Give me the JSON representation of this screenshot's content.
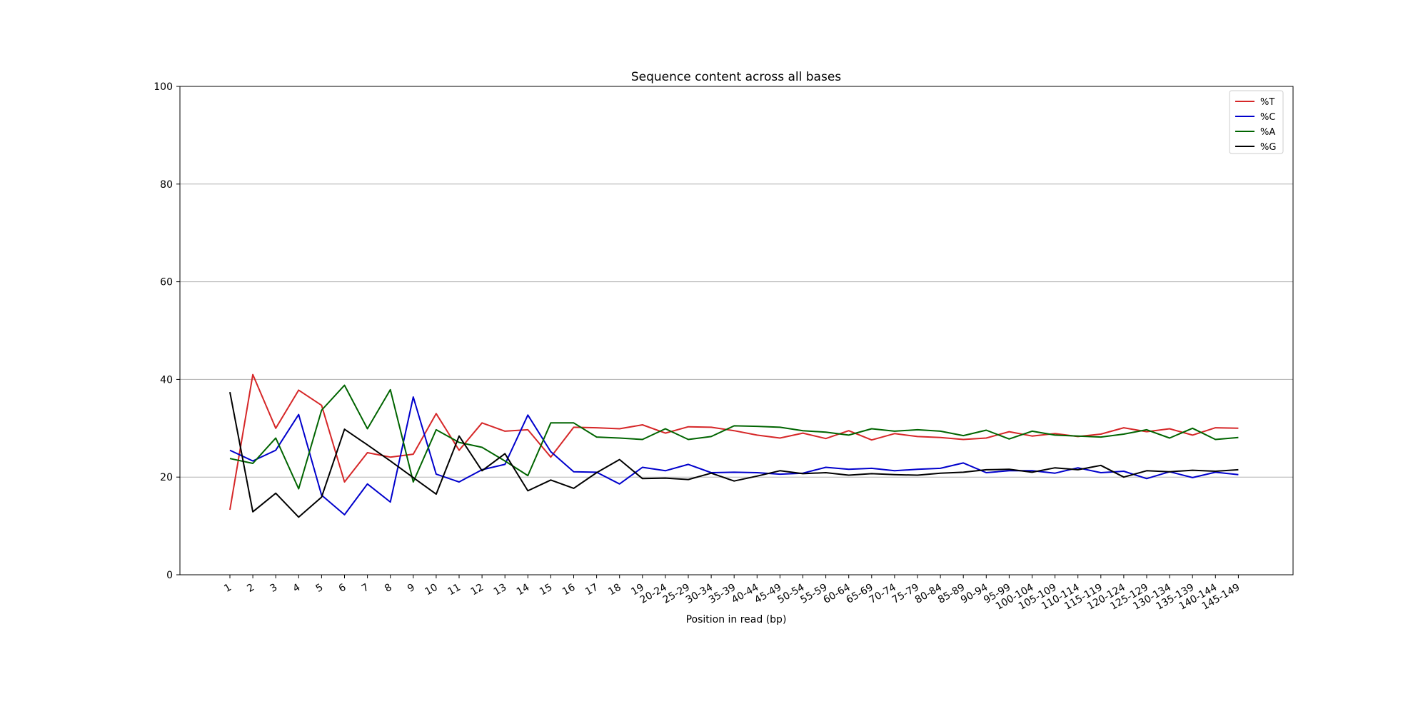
{
  "chart_data": {
    "type": "line",
    "title": "Sequence content across all bases",
    "xlabel": "Position in read (bp)",
    "ylabel": "",
    "ylim": [
      0,
      100
    ],
    "yticks": [
      0,
      20,
      40,
      60,
      80,
      100
    ],
    "grid": "horizontal",
    "legend_position": "top-right",
    "categories": [
      "1",
      "2",
      "3",
      "4",
      "5",
      "6",
      "7",
      "8",
      "9",
      "10",
      "11",
      "12",
      "13",
      "14",
      "15",
      "16",
      "17",
      "18",
      "19",
      "20-24",
      "25-29",
      "30-34",
      "35-39",
      "40-44",
      "45-49",
      "50-54",
      "55-59",
      "60-64",
      "65-69",
      "70-74",
      "75-79",
      "80-84",
      "85-89",
      "90-94",
      "95-99",
      "100-104",
      "105-109",
      "110-114",
      "115-119",
      "120-124",
      "125-129",
      "130-134",
      "135-139",
      "140-144",
      "145-149"
    ],
    "series": [
      {
        "name": "%T",
        "color": "#d62728",
        "values": [
          13.3,
          41.0,
          30.0,
          37.8,
          34.7,
          19.0,
          25.0,
          24.1,
          24.7,
          33.0,
          25.5,
          31.1,
          29.4,
          29.7,
          24.1,
          30.2,
          30.1,
          29.9,
          30.7,
          29.0,
          30.3,
          30.2,
          29.5,
          28.6,
          28.0,
          29.0,
          27.9,
          29.5,
          27.6,
          28.9,
          28.3,
          28.1,
          27.7,
          28.0,
          29.3,
          28.4,
          28.9,
          28.3,
          28.8,
          30.1,
          29.3,
          29.9,
          28.6,
          30.1,
          30.0
        ]
      },
      {
        "name": "%C",
        "color": "#0000cc",
        "values": [
          25.5,
          23.3,
          25.5,
          32.8,
          16.3,
          12.3,
          18.6,
          14.9,
          36.4,
          20.6,
          19.0,
          21.5,
          22.6,
          32.7,
          25.2,
          21.1,
          21.0,
          18.6,
          22.0,
          21.3,
          22.6,
          20.9,
          21.0,
          20.9,
          20.6,
          20.8,
          22.0,
          21.6,
          21.8,
          21.3,
          21.6,
          21.8,
          22.9,
          20.9,
          21.3,
          21.3,
          20.8,
          21.9,
          20.9,
          21.2,
          19.7,
          21.1,
          19.9,
          21.0,
          20.5
        ]
      },
      {
        "name": "%A",
        "color": "#006400",
        "values": [
          23.8,
          22.8,
          28.0,
          17.6,
          33.7,
          38.8,
          29.9,
          37.9,
          19.0,
          29.7,
          27.1,
          26.1,
          23.3,
          20.3,
          31.1,
          31.1,
          28.2,
          28.0,
          27.7,
          29.9,
          27.7,
          28.3,
          30.5,
          30.4,
          30.2,
          29.5,
          29.2,
          28.6,
          29.9,
          29.4,
          29.7,
          29.4,
          28.5,
          29.6,
          27.8,
          29.4,
          28.6,
          28.4,
          28.2,
          28.8,
          29.7,
          28.0,
          30.0,
          27.7,
          28.1
        ]
      },
      {
        "name": "%G",
        "color": "#000000",
        "values": [
          37.4,
          12.9,
          16.7,
          11.8,
          15.9,
          29.8,
          26.6,
          23.3,
          19.9,
          16.5,
          28.4,
          21.3,
          24.8,
          17.2,
          19.4,
          17.7,
          20.9,
          23.6,
          19.7,
          19.8,
          19.5,
          20.8,
          19.2,
          20.2,
          21.3,
          20.7,
          20.9,
          20.4,
          20.7,
          20.5,
          20.4,
          20.8,
          21.0,
          21.5,
          21.6,
          21.0,
          21.9,
          21.5,
          22.4,
          20.0,
          21.3,
          21.1,
          21.4,
          21.2,
          21.5
        ]
      }
    ]
  }
}
